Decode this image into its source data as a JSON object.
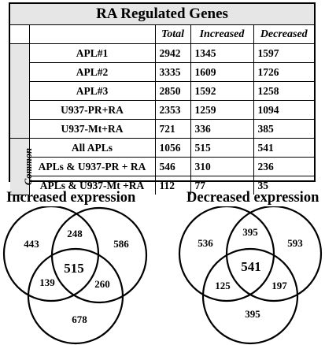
{
  "table": {
    "title": "RA Regulated Genes",
    "headers": [
      "Total",
      "Increased",
      "Decreased"
    ],
    "group_label": "Common",
    "rows": [
      {
        "label": "APL#1",
        "total": "2942",
        "increased": "1345",
        "decreased": "1597"
      },
      {
        "label": "APL#2",
        "total": "3335",
        "increased": "1609",
        "decreased": "1726"
      },
      {
        "label": "APL#3",
        "total": "2850",
        "increased": "1592",
        "decreased": "1258"
      },
      {
        "label": "U937-PR+RA",
        "total": "2353",
        "increased": "1259",
        "decreased": "1094"
      },
      {
        "label": "U937-Mt+RA",
        "total": "721",
        "increased": "336",
        "decreased": "385"
      },
      {
        "label": "All APLs",
        "total": "1056",
        "increased": "515",
        "decreased": "541"
      },
      {
        "label": "APLs & U937-PR + RA",
        "total": "546",
        "increased": "310",
        "decreased": "236"
      },
      {
        "label": "APLs & U937-Mt +RA",
        "total": "112",
        "increased": "77",
        "decreased": "35"
      }
    ]
  },
  "venn_increased": {
    "title": "Increased expression",
    "left_only": "443",
    "top_overlap": "248",
    "right_only": "586",
    "center": "515",
    "bottom_left_overlap": "139",
    "bottom_right_overlap": "260",
    "bottom_only": "678"
  },
  "venn_decreased": {
    "title": "Decreased expression",
    "left_only": "536",
    "top_overlap": "395",
    "right_only": "593",
    "center": "541",
    "bottom_left_overlap": "125",
    "bottom_right_overlap": "197",
    "bottom_only": "395"
  }
}
